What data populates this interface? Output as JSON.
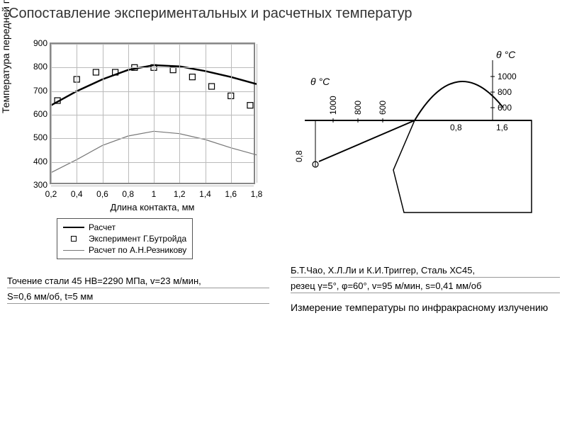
{
  "title": "Сопоставление экспериментальных и расчетных температур",
  "left_chart": {
    "type": "line-scatter",
    "ylabel": "Температура передней поверхности, °С",
    "xlabel": "Длина контакта, мм",
    "ylim": [
      300,
      900
    ],
    "ytick_step": 100,
    "yticks": [
      300,
      400,
      500,
      600,
      700,
      800,
      900
    ],
    "xlim": [
      0.2,
      1.8
    ],
    "xtick_step": 0.2,
    "xticks": [
      "0,2",
      "0,4",
      "0,6",
      "0,8",
      "1",
      "1,2",
      "1,4",
      "1,6",
      "1,8"
    ],
    "grid_color": "#bbbbbb",
    "border_color": "#888888",
    "series_calc": {
      "label": "Расчет",
      "color": "#000000",
      "width": 2.5,
      "x": [
        0.2,
        0.4,
        0.6,
        0.8,
        1.0,
        1.2,
        1.4,
        1.6,
        1.8
      ],
      "y": [
        640,
        700,
        750,
        790,
        810,
        805,
        785,
        760,
        730
      ]
    },
    "series_reznikov": {
      "label": "Расчет по А.Н.Резникову",
      "color": "#777777",
      "width": 1.2,
      "x": [
        0.2,
        0.4,
        0.6,
        0.8,
        1.0,
        1.2,
        1.4,
        1.6,
        1.8
      ],
      "y": [
        355,
        410,
        470,
        510,
        530,
        520,
        495,
        460,
        430
      ]
    },
    "series_exp": {
      "label": "Эксперимент Г.Бутройда",
      "marker": "square",
      "color": "#000000",
      "x": [
        0.25,
        0.4,
        0.55,
        0.7,
        0.85,
        1.0,
        1.15,
        1.3,
        1.45,
        1.6,
        1.75
      ],
      "y": [
        660,
        750,
        780,
        780,
        800,
        800,
        790,
        760,
        720,
        680,
        640
      ]
    },
    "legend_items": [
      "Расчет",
      "Эксперимент Г.Бутройда",
      "Расчет по А.Н.Резникову"
    ]
  },
  "left_caption_1": "Точение стали 45 НВ=2290 МПа, v=23 м/мин,",
  "left_caption_2": "S=0,6 мм/об, t=5 мм",
  "right_diagram": {
    "theta_label_left": "θ °С",
    "theta_label_right": "θ °С",
    "left_ticks": [
      "1000",
      "800",
      "600"
    ],
    "right_ticks": [
      "1000",
      "800",
      "600"
    ],
    "right_xticks": [
      "0,8",
      "1,6"
    ],
    "left_ytick": "0,8",
    "line_color": "#000000",
    "line_width": 2
  },
  "right_caption_1": "Б.Т.Чао, Х.Л.Ли и К.И.Триггер,  Сталь ХС45,",
  "right_caption_2": "резец   γ=5°, φ=60°, v=95 м/мин, s=0,41 мм/об",
  "right_sub_caption": "Измерение температуры по инфракрасному  излучению"
}
